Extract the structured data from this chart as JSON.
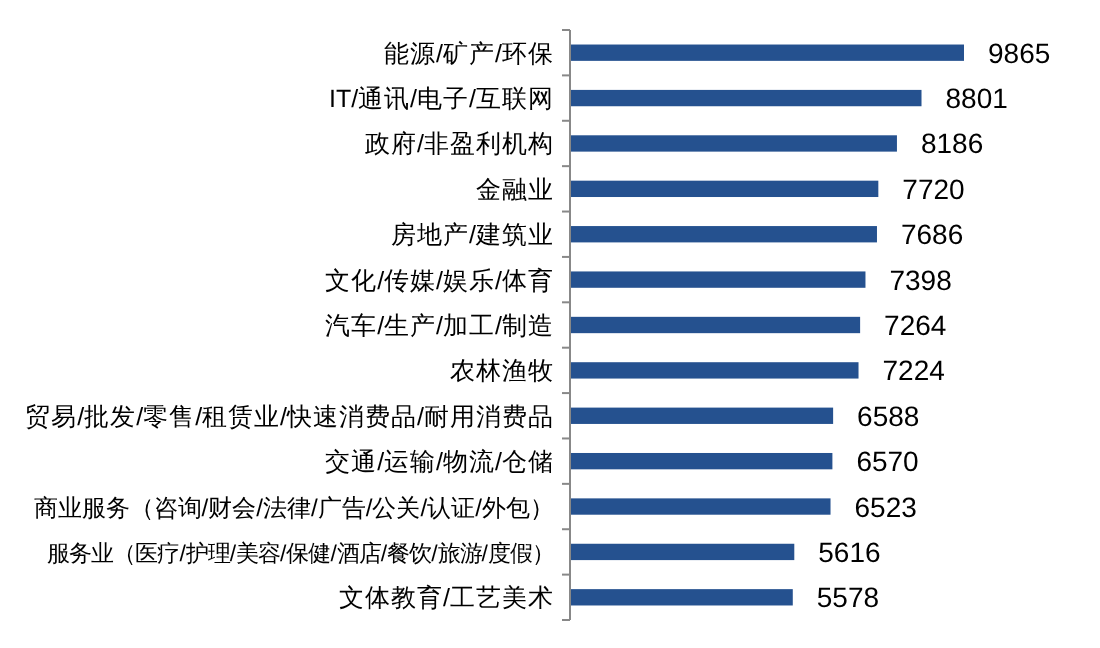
{
  "chart_data": {
    "type": "bar",
    "orientation": "horizontal",
    "categories": [
      "能源/矿产/环保",
      "IT/通讯/电子/互联网",
      "政府/非盈利机构",
      "金融业",
      "房地产/建筑业",
      "文化/传媒/娱乐/体育",
      "汽车/生产/加工/制造",
      "农林渔牧",
      "贸易/批发/零售/租赁业/快速消费品/耐用消费品",
      "交通/运输/物流/仓储",
      "商业服务（咨询/财会/法律/广告/公关/认证/外包）",
      "服务业（医疗/护理/美容/保健/酒店/餐饮/旅游/度假）",
      "文体教育/工艺美术"
    ],
    "values": [
      9865,
      8801,
      8186,
      7720,
      7686,
      7398,
      7264,
      7224,
      6588,
      6570,
      6523,
      5616,
      5578
    ],
    "color": "#25518f",
    "data_labels": true,
    "tick_labels": "y"
  }
}
